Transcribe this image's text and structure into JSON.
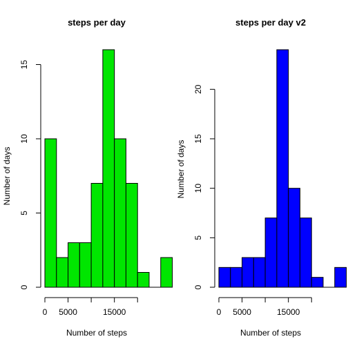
{
  "chart_data": [
    {
      "type": "bar",
      "subtype": "histogram",
      "title": "steps per day",
      "xlabel": "Number of steps",
      "ylabel": "Number of days",
      "bin_width": 2500,
      "x_bins_start": 0,
      "values": [
        10,
        2,
        3,
        3,
        7,
        16,
        10,
        7,
        1,
        0,
        2
      ],
      "xlim": [
        0,
        22500
      ],
      "x_ticks": [
        0,
        5000,
        10000,
        15000,
        20000
      ],
      "x_tick_labels": [
        "0",
        "5000",
        "",
        "15000",
        ""
      ],
      "ylim": [
        0,
        16
      ],
      "y_ticks": [
        0,
        5,
        10,
        15
      ],
      "y_tick_labels": [
        "0",
        "5",
        "10",
        "15"
      ],
      "bar_color": "#00e600",
      "edge_color": "#000000",
      "grid": false
    },
    {
      "type": "bar",
      "subtype": "histogram",
      "title": "steps per day v2",
      "xlabel": "Number of steps",
      "ylabel": "Number of days",
      "bin_width": 2500,
      "x_bins_start": 0,
      "values": [
        2,
        2,
        3,
        3,
        7,
        24,
        10,
        7,
        1,
        0,
        2
      ],
      "xlim": [
        0,
        22500
      ],
      "x_ticks": [
        0,
        5000,
        10000,
        15000,
        20000
      ],
      "x_tick_labels": [
        "0",
        "5000",
        "",
        "15000",
        ""
      ],
      "ylim": [
        0,
        24
      ],
      "y_ticks": [
        0,
        5,
        10,
        15,
        20
      ],
      "y_tick_labels": [
        "0",
        "5",
        "10",
        "15",
        "20"
      ],
      "bar_color": "#0000ff",
      "edge_color": "#000000",
      "grid": false
    }
  ]
}
